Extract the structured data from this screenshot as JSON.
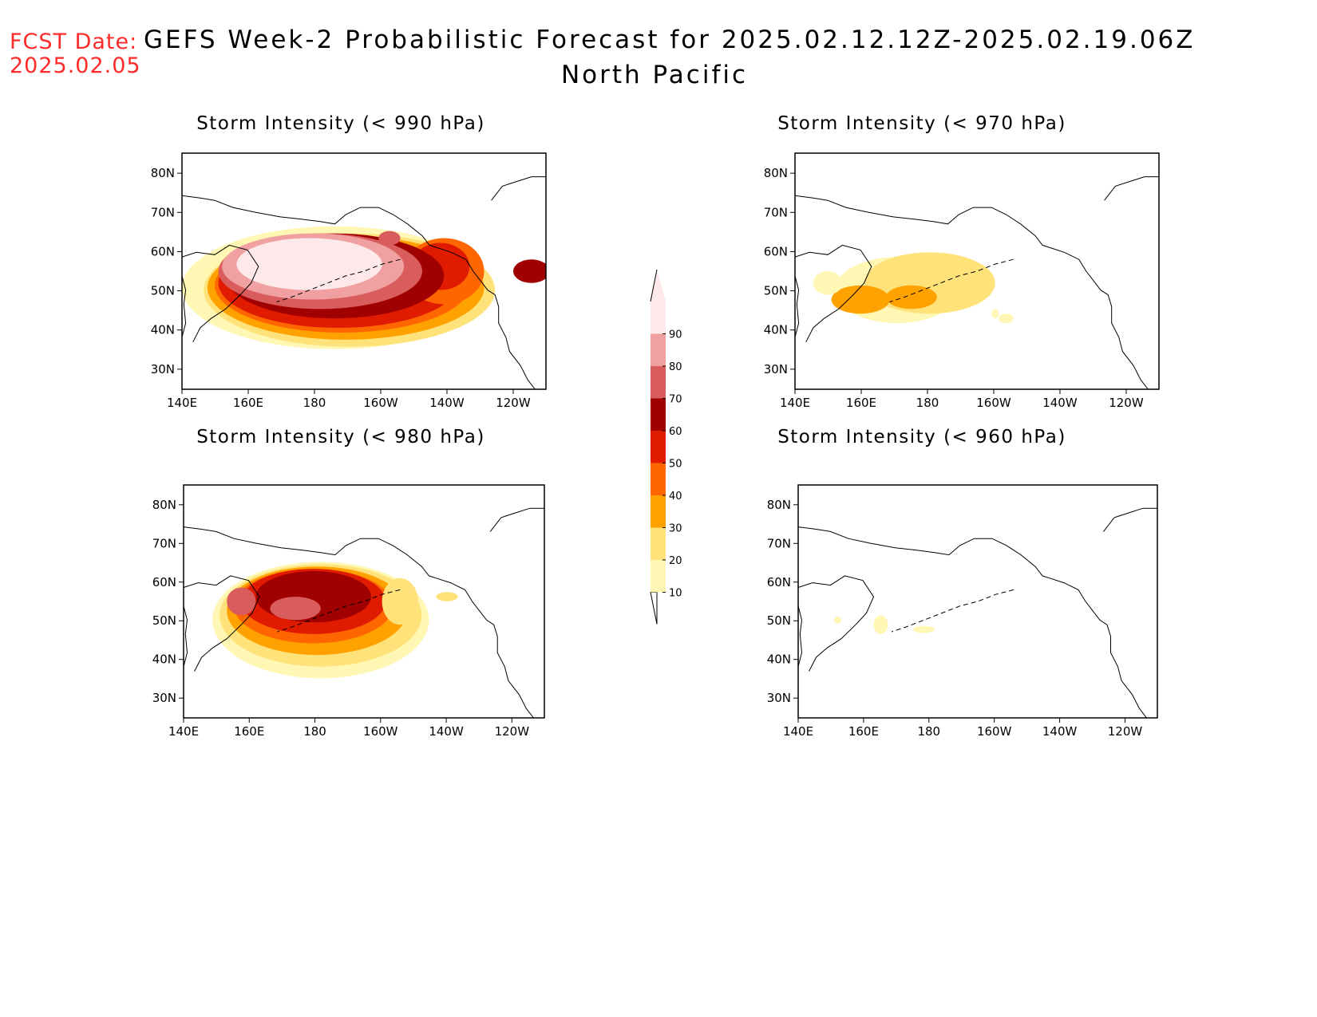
{
  "header": {
    "fcst_label": "FCST Date:",
    "fcst_date": "2025.02.05",
    "title": "GEFS Week-2 Probabilistic Forecast for 2025.02.12.12Z-2025.02.19.06Z",
    "subtitle": "North Pacific"
  },
  "panels": [
    {
      "id": "p990",
      "title": "Storm Intensity (< 990 hPa)",
      "intensity": "high"
    },
    {
      "id": "p970",
      "title": "Storm Intensity (< 970 hPa)",
      "intensity": "low"
    },
    {
      "id": "p980",
      "title": "Storm Intensity (< 980 hPa)",
      "intensity": "medium"
    },
    {
      "id": "p960",
      "title": "Storm Intensity (< 960 hPa)",
      "intensity": "minimal"
    }
  ],
  "axes": {
    "x_ticks": [
      "140E",
      "160E",
      "180",
      "160W",
      "140W",
      "120W"
    ],
    "y_ticks": [
      "80N",
      "70N",
      "60N",
      "50N",
      "40N",
      "30N"
    ]
  },
  "colorbar": {
    "levels": [
      "10",
      "20",
      "30",
      "40",
      "50",
      "60",
      "70",
      "80",
      "90"
    ],
    "colors": [
      "#fff7b3",
      "#ffe37a",
      "#ffa200",
      "#ff6600",
      "#e01b00",
      "#a00000",
      "#d95d5d",
      "#f0a0a0",
      "#fde8ea"
    ]
  }
}
